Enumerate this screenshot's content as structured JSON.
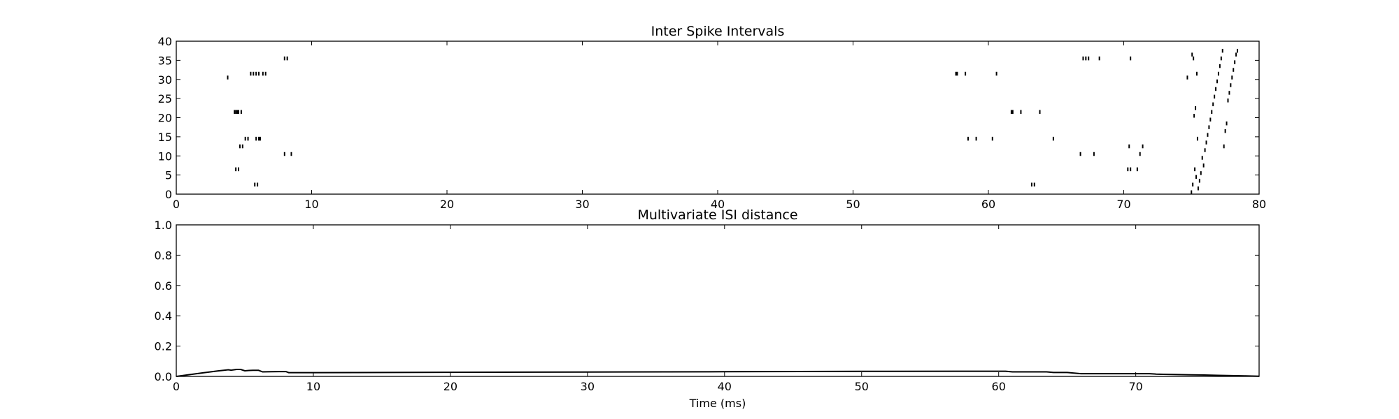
{
  "chart_data": [
    {
      "type": "scatter",
      "marker": "vertical-tick",
      "title": "Inter Spike Intervals",
      "xlabel": "",
      "ylabel": "",
      "xlim": [
        0,
        80
      ],
      "ylim": [
        0,
        40
      ],
      "xticks": [
        "0",
        "10",
        "20",
        "30",
        "40",
        "50",
        "60",
        "70",
        "80"
      ],
      "yticks": [
        "0",
        "5",
        "10",
        "15",
        "20",
        "25",
        "30",
        "35",
        "40"
      ],
      "grid": false,
      "color": "#000000",
      "series": [
        {
          "x": [
            8.0,
            8.2,
            67.0,
            67.2,
            67.4,
            68.2,
            70.5,
            5.5,
            5.7,
            5.9,
            6.1,
            6.4,
            6.6,
            57.6,
            57.7,
            58.3,
            60.6,
            3.8,
            74.7,
            4.3,
            4.4,
            4.5,
            4.6,
            4.8,
            61.7,
            61.8,
            62.4,
            63.8,
            5.1,
            5.3,
            5.9,
            6.1,
            6.2,
            58.5,
            59.1,
            60.3,
            64.8,
            4.7,
            4.9,
            70.4,
            71.4,
            8.0,
            8.5,
            66.8,
            67.8,
            71.2,
            4.4,
            4.6,
            70.3,
            70.5,
            71.0,
            5.8,
            6.0,
            63.2,
            63.4
          ],
          "y": [
            35.5,
            35.5,
            35.5,
            35.5,
            35.5,
            35.5,
            35.5,
            31.5,
            31.5,
            31.5,
            31.5,
            31.5,
            31.5,
            31.5,
            31.5,
            31.5,
            31.5,
            30.5,
            30.5,
            21.5,
            21.5,
            21.5,
            21.5,
            21.5,
            21.5,
            21.5,
            21.5,
            21.5,
            14.5,
            14.5,
            14.5,
            14.5,
            14.5,
            14.5,
            14.5,
            14.5,
            14.5,
            12.5,
            12.5,
            12.5,
            12.5,
            10.5,
            10.5,
            10.5,
            10.5,
            10.5,
            6.5,
            6.5,
            6.5,
            6.5,
            6.5,
            2.5,
            2.5,
            2.5,
            2.5
          ]
        },
        {
          "x": [
            75.0,
            75.05,
            75.1,
            75.15,
            75.2,
            75.25,
            75.3,
            75.35,
            75.4,
            75.45,
            75.5,
            75.6,
            75.7,
            75.8,
            75.9,
            76.0,
            76.1,
            76.2,
            76.3,
            76.4,
            76.5,
            76.6,
            76.7,
            76.8,
            76.9,
            77.0,
            77.1,
            77.2,
            77.3,
            77.4,
            77.5,
            77.6,
            77.7,
            77.8,
            77.9,
            78.0,
            78.1,
            78.2,
            78.3,
            78.4
          ],
          "y": [
            0.5,
            36.5,
            2.5,
            35.5,
            20.5,
            6.5,
            22.5,
            4.5,
            31.5,
            14.5,
            1.5,
            3.5,
            5.5,
            9.5,
            7.5,
            11.5,
            13.5,
            15.5,
            17.5,
            19.5,
            21.5,
            23.5,
            25.5,
            27.5,
            29.5,
            31.5,
            33.5,
            35.5,
            37.5,
            12.5,
            16.5,
            18.5,
            24.5,
            26.5,
            28.5,
            30.5,
            32.5,
            34.5,
            36.5,
            37.5
          ]
        }
      ]
    },
    {
      "type": "line",
      "title": "Multivariate ISI distance",
      "xlabel": "Time (ms)",
      "ylabel": "",
      "xlim": [
        0,
        79
      ],
      "ylim": [
        0,
        1.0
      ],
      "xticks": [
        "0",
        "10",
        "20",
        "30",
        "40",
        "50",
        "60",
        "70"
      ],
      "yticks": [
        "0.0",
        "0.2",
        "0.4",
        "0.6",
        "0.8",
        "1.0"
      ],
      "grid": false,
      "color": "#000000",
      "series": [
        {
          "x": [
            0,
            1,
            2,
            3,
            3.8,
            4.0,
            4.4,
            4.7,
            5.0,
            5.3,
            5.6,
            6.0,
            6.3,
            7.0,
            7.5,
            8.0,
            8.2,
            10,
            20,
            30,
            40,
            50,
            57,
            60,
            60.5,
            61,
            62,
            63,
            63.5,
            64,
            65,
            66,
            67,
            67.5,
            68,
            70,
            71,
            71.5,
            72,
            73,
            74,
            75,
            76,
            77,
            78,
            79
          ],
          "y": [
            0.0,
            0.012,
            0.024,
            0.036,
            0.044,
            0.041,
            0.046,
            0.046,
            0.037,
            0.039,
            0.04,
            0.04,
            0.03,
            0.031,
            0.032,
            0.032,
            0.025,
            0.025,
            0.027,
            0.029,
            0.031,
            0.033,
            0.034,
            0.034,
            0.034,
            0.03,
            0.03,
            0.03,
            0.03,
            0.026,
            0.026,
            0.018,
            0.018,
            0.018,
            0.018,
            0.018,
            0.018,
            0.015,
            0.014,
            0.012,
            0.01,
            0.009,
            0.007,
            0.005,
            0.003,
            0.001
          ]
        }
      ]
    }
  ]
}
